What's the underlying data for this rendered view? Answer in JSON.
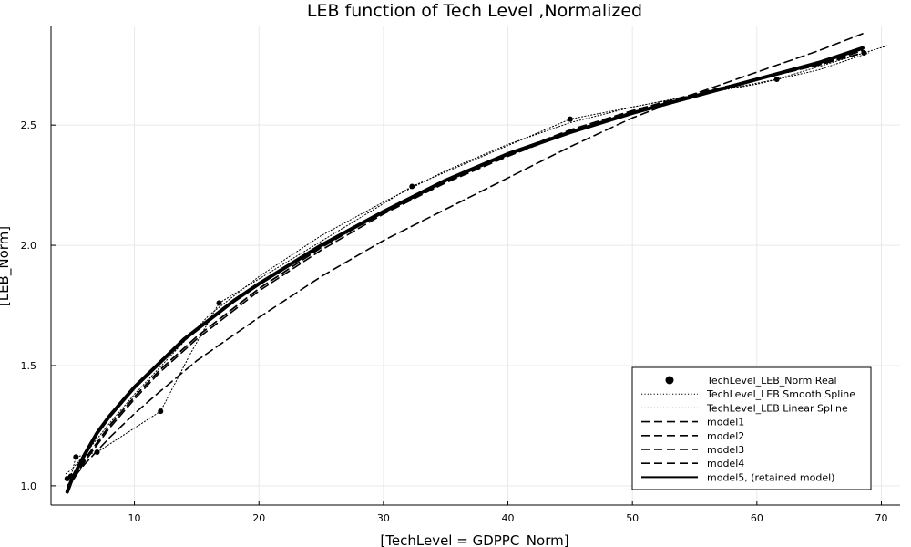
{
  "chart_data": {
    "type": "line",
    "title": "LEB function of Tech Level ,Normalized",
    "xlabel": "[TechLevel = GDPPC_Norm]",
    "ylabel": "[LEB_Norm]",
    "xlim": [
      3.3,
      71.5
    ],
    "ylim": [
      0.92,
      2.91
    ],
    "xticks": [
      10,
      20,
      30,
      40,
      50,
      60,
      70
    ],
    "yticks": [
      1.0,
      1.5,
      2.0,
      2.5
    ],
    "grid": true,
    "legend_position": "bottom-right",
    "points": {
      "name": "TechLevel_LEB_Norm Real",
      "x": [
        4.6,
        4.9,
        5.3,
        7.0,
        12.1,
        16.8,
        32.3,
        45.0,
        61.6,
        68.6
      ],
      "y": [
        1.03,
        1.04,
        1.12,
        1.14,
        1.31,
        1.76,
        2.245,
        2.525,
        2.69,
        2.8
      ]
    },
    "series": [
      {
        "name": "TechLevel_LEB Smooth Spline",
        "style": "dotted",
        "x": [
          4.5,
          5.0,
          6.0,
          8.0,
          10.0,
          12.0,
          14.0,
          16.0,
          20.0,
          25.0,
          30.0,
          35.0,
          40.0,
          45.0,
          50.0,
          55.0,
          60.0,
          65.0,
          69.0
        ],
        "y": [
          1.05,
          1.07,
          1.13,
          1.26,
          1.38,
          1.49,
          1.6,
          1.71,
          1.87,
          2.04,
          2.18,
          2.31,
          2.42,
          2.51,
          2.575,
          2.625,
          2.67,
          2.73,
          2.8
        ]
      },
      {
        "name": "TechLevel_LEB Linear Spline",
        "style": "dotted",
        "x": [
          4.6,
          4.9,
          5.3,
          7.0,
          12.1,
          14.5,
          16.8,
          32.3,
          45.0,
          61.6,
          68.6,
          70.5
        ],
        "y": [
          1.03,
          1.04,
          1.12,
          1.14,
          1.31,
          1.55,
          1.76,
          2.245,
          2.525,
          2.69,
          2.8,
          2.83
        ]
      },
      {
        "name": "model1",
        "style": "dashed",
        "x": [
          4.6,
          6.0,
          8.0,
          10.0,
          12.0,
          15.0,
          20.0,
          25.0,
          30.0,
          35.0,
          40.0,
          45.0,
          50.0,
          55.0,
          60.0,
          65.0,
          68.5
        ],
        "y": [
          1.0,
          1.09,
          1.2,
          1.3,
          1.39,
          1.52,
          1.7,
          1.87,
          2.02,
          2.15,
          2.28,
          2.41,
          2.53,
          2.63,
          2.72,
          2.81,
          2.88
        ]
      },
      {
        "name": "model2",
        "style": "dashed",
        "x": [
          4.6,
          6.0,
          8.0,
          10.0,
          12.0,
          15.0,
          20.0,
          25.0,
          30.0,
          35.0,
          40.0,
          45.0,
          50.0,
          55.0,
          60.0,
          65.0,
          68.5
        ],
        "y": [
          0.99,
          1.11,
          1.25,
          1.37,
          1.48,
          1.62,
          1.82,
          1.99,
          2.14,
          2.27,
          2.38,
          2.48,
          2.56,
          2.63,
          2.69,
          2.75,
          2.8
        ]
      },
      {
        "name": "model3",
        "style": "dashed",
        "x": [
          4.6,
          6.0,
          8.0,
          10.0,
          12.0,
          15.0,
          20.0,
          25.0,
          30.0,
          35.0,
          40.0,
          45.0,
          50.0,
          55.0,
          60.0,
          65.0,
          68.5
        ],
        "y": [
          0.985,
          1.1,
          1.24,
          1.36,
          1.47,
          1.61,
          1.81,
          1.98,
          2.13,
          2.26,
          2.37,
          2.47,
          2.55,
          2.625,
          2.69,
          2.75,
          2.81
        ]
      },
      {
        "name": "model4",
        "style": "dashed",
        "x": [
          4.6,
          6.0,
          8.0,
          10.0,
          12.0,
          15.0,
          20.0,
          25.0,
          30.0,
          35.0,
          40.0,
          45.0,
          50.0,
          55.0,
          60.0,
          65.0,
          68.5
        ],
        "y": [
          0.99,
          1.11,
          1.25,
          1.37,
          1.48,
          1.62,
          1.82,
          1.99,
          2.14,
          2.27,
          2.38,
          2.47,
          2.55,
          2.62,
          2.69,
          2.76,
          2.82
        ]
      },
      {
        "name": "model5, (retained model)",
        "style": "solid",
        "x": [
          4.6,
          5.0,
          6.0,
          7.0,
          8.0,
          9.0,
          10.0,
          12.0,
          14.0,
          16.0,
          18.0,
          20.0,
          25.0,
          30.0,
          35.0,
          40.0,
          45.0,
          50.0,
          55.0,
          60.0,
          65.0,
          68.5
        ],
        "y": [
          0.975,
          1.03,
          1.13,
          1.22,
          1.29,
          1.35,
          1.41,
          1.51,
          1.61,
          1.69,
          1.77,
          1.84,
          2.0,
          2.14,
          2.27,
          2.38,
          2.47,
          2.55,
          2.62,
          2.69,
          2.76,
          2.82
        ]
      }
    ],
    "colors": {
      "line": "#000000",
      "grid": "#e9e9e9",
      "axis": "#000000"
    }
  }
}
